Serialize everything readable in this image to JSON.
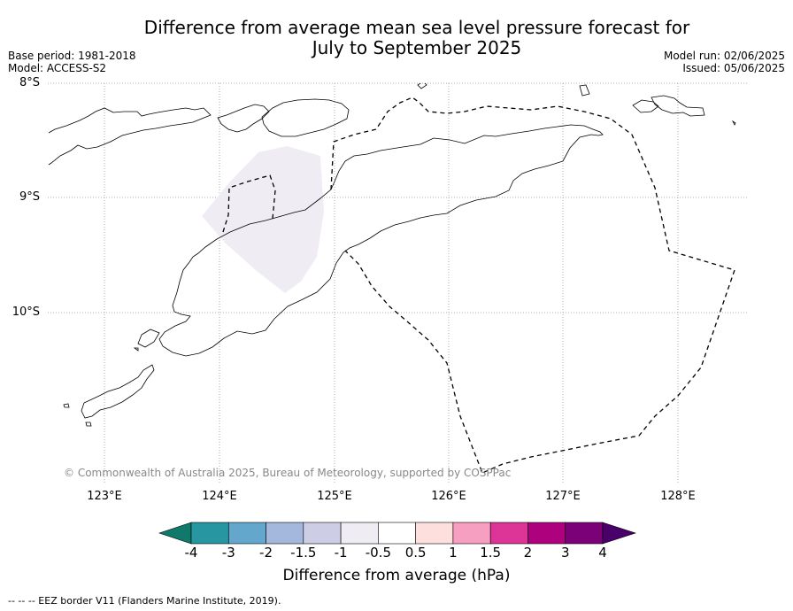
{
  "title_line1": "Difference from average mean sea level pressure forecast for",
  "title_line2": "July to September 2025",
  "base_period": "Base period: 1981-2018",
  "model": "Model: ACCESS-S2",
  "model_run": "Model run: 02/06/2025",
  "issued": "Issued: 05/06/2025",
  "lat_labels": [
    "8°S",
    "9°S",
    "10°S"
  ],
  "lon_labels": [
    "123°E",
    "124°E",
    "125°E",
    "126°E",
    "127°E",
    "128°E"
  ],
  "copyright": "© Commonwealth of Australia 2025, Bureau of Meteorology, supported by COSPPac",
  "colorbar": {
    "title": "Difference from average (hPa)",
    "ticks": [
      "-4",
      "-3",
      "-2",
      "-1.5",
      "-1",
      "-0.5",
      "0.5",
      "1",
      "1.5",
      "2",
      "3",
      "4"
    ],
    "colors": [
      "#0f7a6a",
      "#2796a0",
      "#63a7cd",
      "#a4b7dc",
      "#cdcde6",
      "#f0ecf4",
      "#ffffff",
      "#fde0dd",
      "#f79fc0",
      "#dd3497",
      "#ae017e",
      "#7a0177",
      "#49006a"
    ]
  },
  "shaded_region_category": "-1 to -0.5",
  "shaded_region_color": "#f0ecf4",
  "legend_note": "-- -- -- EEZ border V11 (Flanders Marine Institute, 2019)."
}
